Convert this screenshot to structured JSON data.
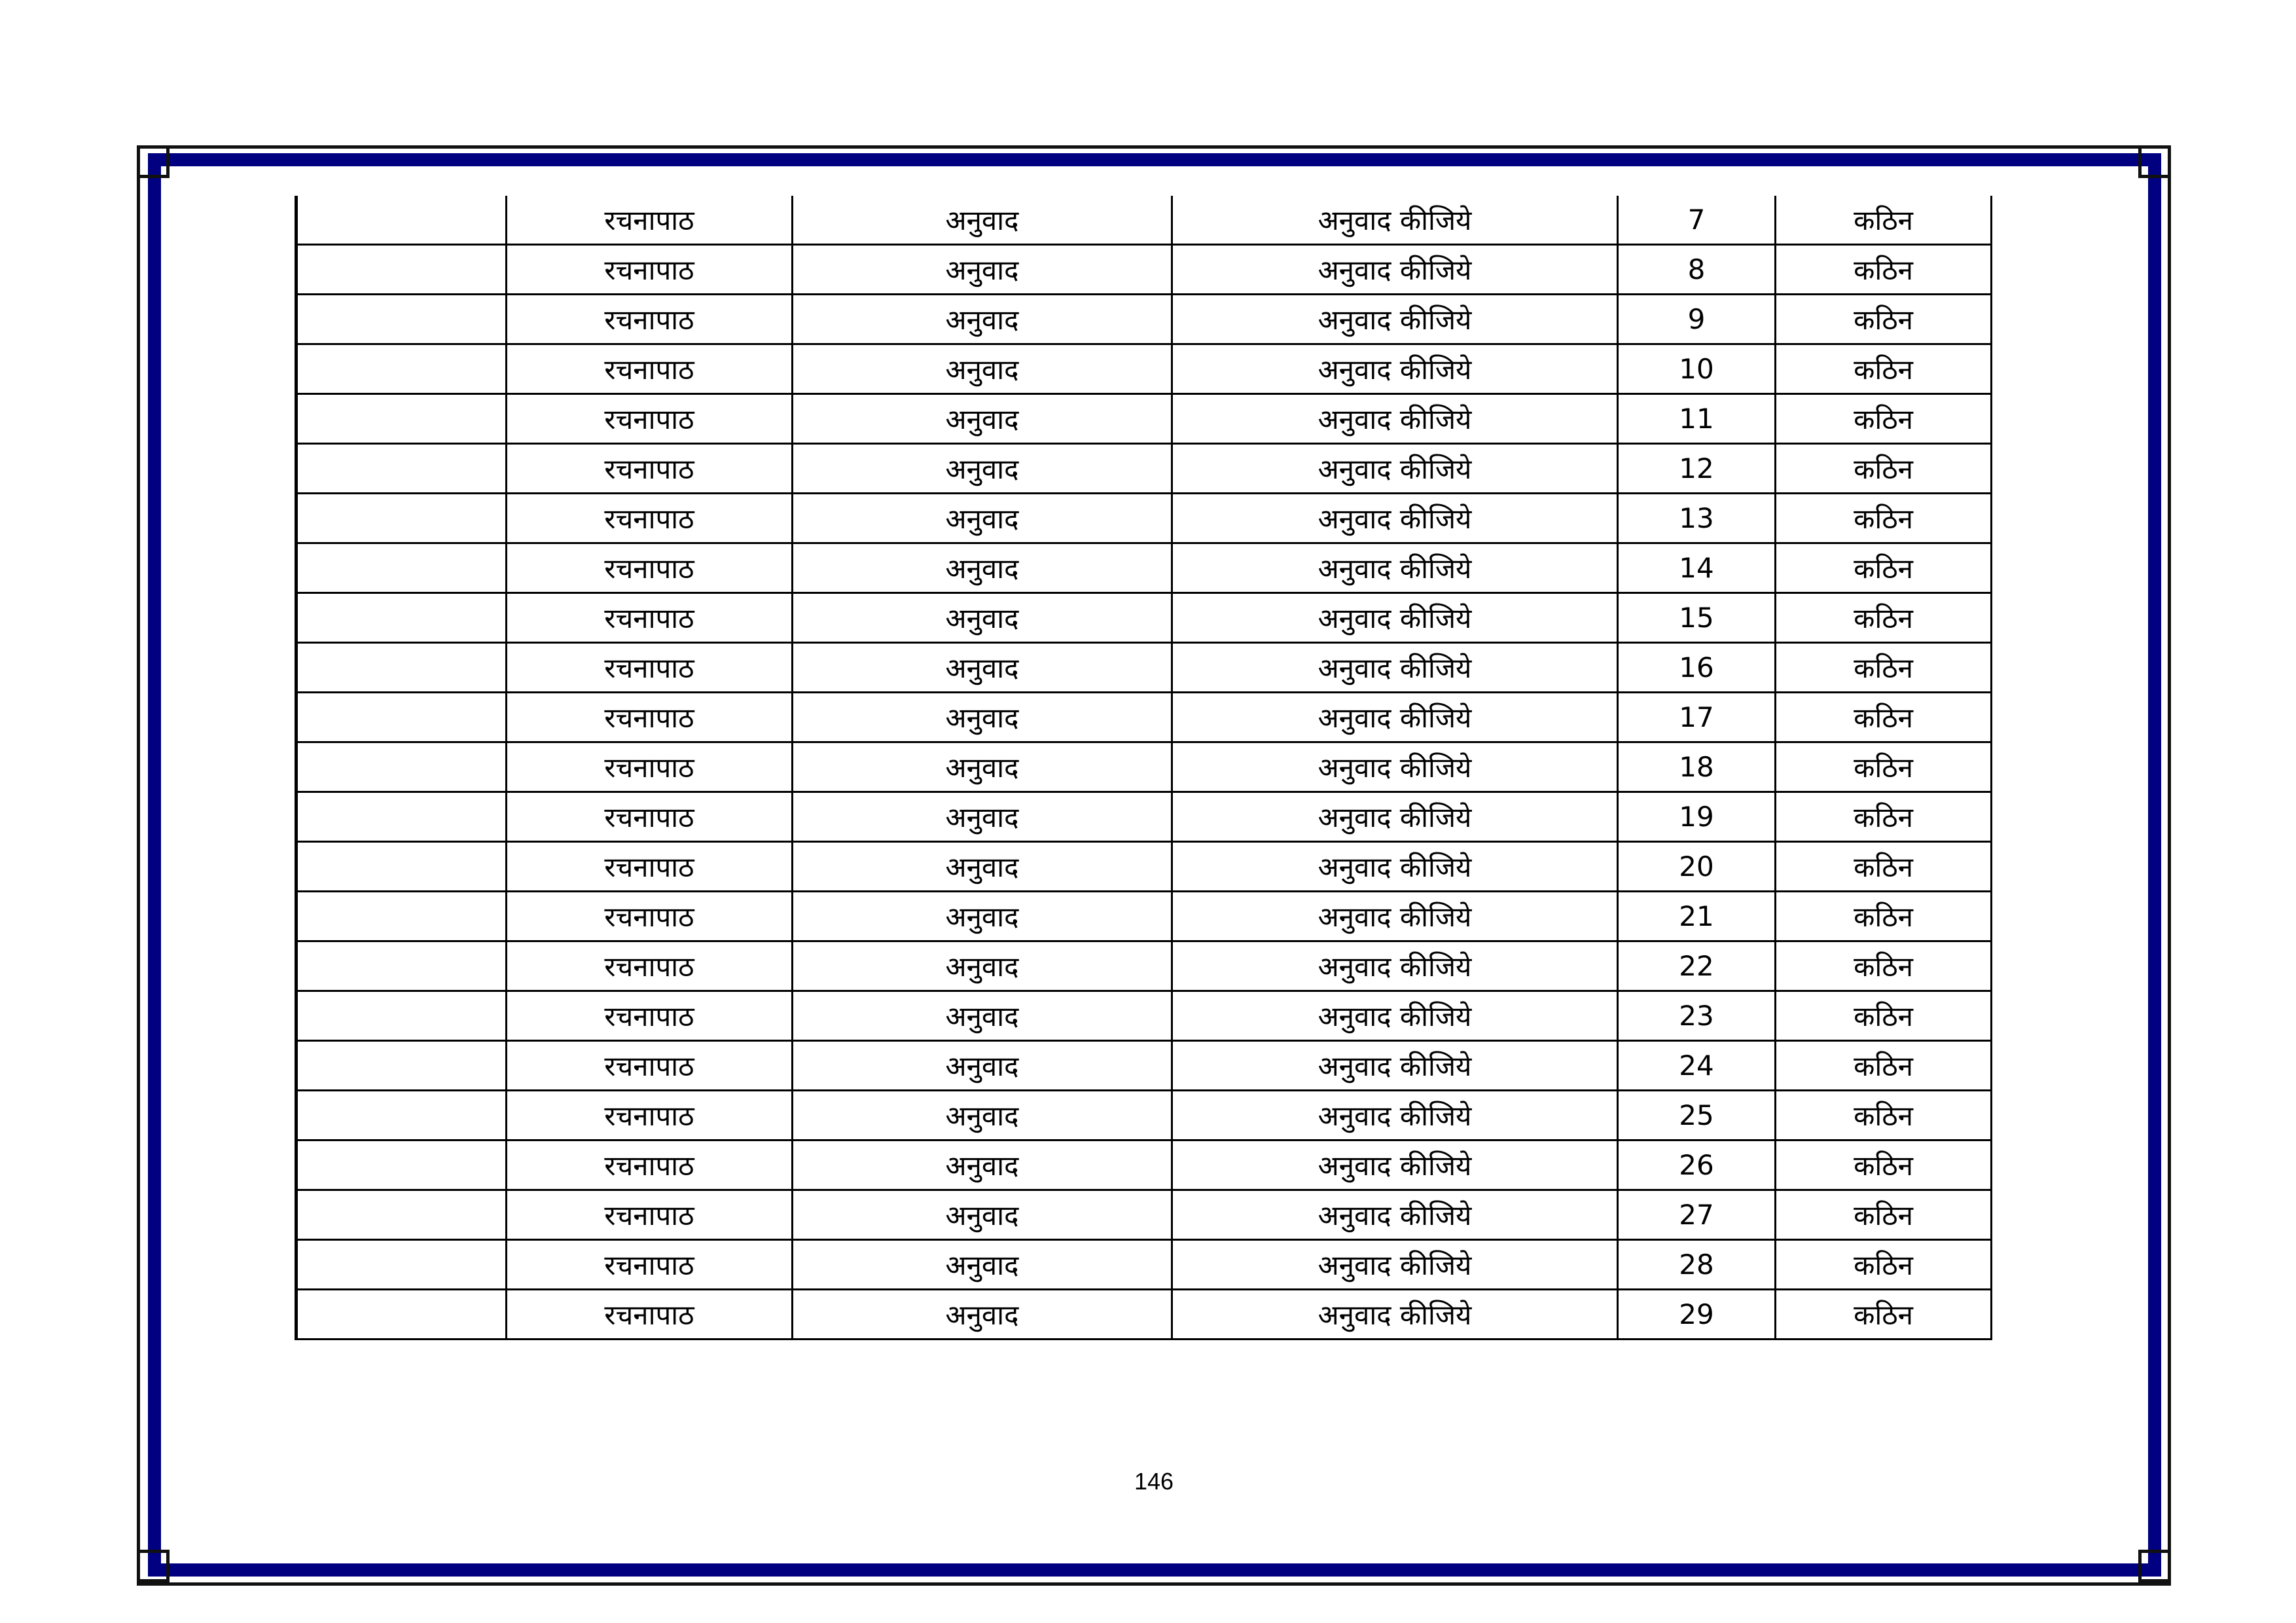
{
  "page_number": "146",
  "colors": {
    "border_band": "#000080",
    "lines": "#000000"
  },
  "table": {
    "rows": [
      [
        "",
        "रचनापाठ",
        "अनुवाद",
        "अनुवाद कीजिये",
        "7",
        "कठिन"
      ],
      [
        "",
        "रचनापाठ",
        "अनुवाद",
        "अनुवाद कीजिये",
        "8",
        "कठिन"
      ],
      [
        "",
        "रचनापाठ",
        "अनुवाद",
        "अनुवाद कीजिये",
        "9",
        "कठिन"
      ],
      [
        "",
        "रचनापाठ",
        "अनुवाद",
        "अनुवाद कीजिये",
        "10",
        "कठिन"
      ],
      [
        "",
        "रचनापाठ",
        "अनुवाद",
        "अनुवाद कीजिये",
        "11",
        "कठिन"
      ],
      [
        "",
        "रचनापाठ",
        "अनुवाद",
        "अनुवाद कीजिये",
        "12",
        "कठिन"
      ],
      [
        "",
        "रचनापाठ",
        "अनुवाद",
        "अनुवाद कीजिये",
        "13",
        "कठिन"
      ],
      [
        "",
        "रचनापाठ",
        "अनुवाद",
        "अनुवाद कीजिये",
        "14",
        "कठिन"
      ],
      [
        "",
        "रचनापाठ",
        "अनुवाद",
        "अनुवाद कीजिये",
        "15",
        "कठिन"
      ],
      [
        "",
        "रचनापाठ",
        "अनुवाद",
        "अनुवाद कीजिये",
        "16",
        "कठिन"
      ],
      [
        "",
        "रचनापाठ",
        "अनुवाद",
        "अनुवाद कीजिये",
        "17",
        "कठिन"
      ],
      [
        "",
        "रचनापाठ",
        "अनुवाद",
        "अनुवाद कीजिये",
        "18",
        "कठिन"
      ],
      [
        "",
        "रचनापाठ",
        "अनुवाद",
        "अनुवाद कीजिये",
        "19",
        "कठिन"
      ],
      [
        "",
        "रचनापाठ",
        "अनुवाद",
        "अनुवाद कीजिये",
        "20",
        "कठिन"
      ],
      [
        "",
        "रचनापाठ",
        "अनुवाद",
        "अनुवाद कीजिये",
        "21",
        "कठिन"
      ],
      [
        "",
        "रचनापाठ",
        "अनुवाद",
        "अनुवाद कीजिये",
        "22",
        "कठिन"
      ],
      [
        "",
        "रचनापाठ",
        "अनुवाद",
        "अनुवाद कीजिये",
        "23",
        "कठिन"
      ],
      [
        "",
        "रचनापाठ",
        "अनुवाद",
        "अनुवाद कीजिये",
        "24",
        "कठिन"
      ],
      [
        "",
        "रचनापाठ",
        "अनुवाद",
        "अनुवाद कीजिये",
        "25",
        "कठिन"
      ],
      [
        "",
        "रचनापाठ",
        "अनुवाद",
        "अनुवाद कीजिये",
        "26",
        "कठिन"
      ],
      [
        "",
        "रचनापाठ",
        "अनुवाद",
        "अनुवाद कीजिये",
        "27",
        "कठिन"
      ],
      [
        "",
        "रचनापाठ",
        "अनुवाद",
        "अनुवाद कीजिये",
        "28",
        "कठिन"
      ],
      [
        "",
        "रचनापाठ",
        "अनुवाद",
        "अनुवाद कीजिये",
        "29",
        "कठिन"
      ]
    ]
  }
}
